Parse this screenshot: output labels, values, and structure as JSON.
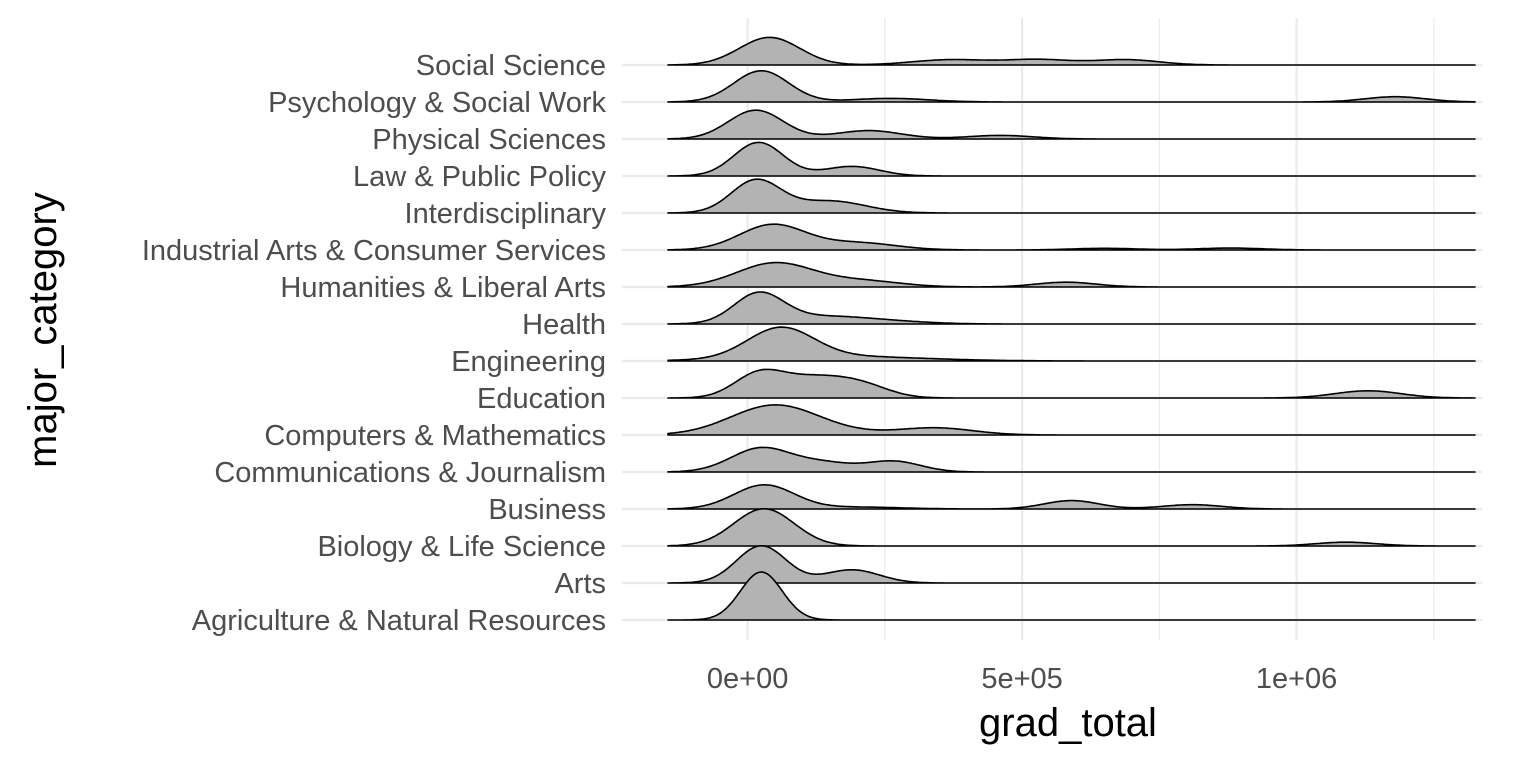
{
  "chart_data": {
    "type": "ridgeline",
    "title": "",
    "xlabel": "grad_total",
    "ylabel": "major_category",
    "x_ticks": [
      "0e+00",
      "5e+05",
      "1e+06"
    ],
    "x_tick_values": [
      0,
      500000,
      1000000
    ],
    "xlim": [
      -145000,
      1325000
    ],
    "grid": true,
    "fill_color": "#b3b3b3",
    "line_color": "#000000",
    "grid_color": "#ebebeb",
    "categories": [
      "Agriculture & Natural Resources",
      "Arts",
      "Biology & Life Science",
      "Business",
      "Communications & Journalism",
      "Computers & Mathematics",
      "Education",
      "Engineering",
      "Health",
      "Humanities & Liberal Arts",
      "Industrial Arts & Consumer Services",
      "Interdisciplinary",
      "Law & Public Policy",
      "Physical Sciences",
      "Psychology & Social Work",
      "Social Science"
    ],
    "series": [
      {
        "name": "Agriculture & Natural Resources",
        "x_range": [
          -145000,
          1325000
        ],
        "peaks": [
          {
            "x": 25000,
            "h": 2.0,
            "w": 38000
          }
        ]
      },
      {
        "name": "Arts",
        "x_range": [
          -145000,
          1325000
        ],
        "peaks": [
          {
            "x": 25000,
            "h": 1.55,
            "w": 45000
          },
          {
            "x": 190000,
            "h": 0.55,
            "w": 50000
          }
        ]
      },
      {
        "name": "Biology & Life Science",
        "x_range": [
          -145000,
          1325000
        ],
        "peaks": [
          {
            "x": 30000,
            "h": 1.55,
            "w": 55000
          },
          {
            "x": 1090000,
            "h": 0.16,
            "w": 55000
          }
        ]
      },
      {
        "name": "Business",
        "x_range": [
          -145000,
          1325000
        ],
        "peaks": [
          {
            "x": 30000,
            "h": 1.0,
            "w": 55000
          },
          {
            "x": 200000,
            "h": 0.08,
            "w": 80000
          },
          {
            "x": 590000,
            "h": 0.35,
            "w": 50000
          },
          {
            "x": 810000,
            "h": 0.18,
            "w": 55000
          }
        ]
      },
      {
        "name": "Communications & Journalism",
        "x_range": [
          -145000,
          1325000
        ],
        "peaks": [
          {
            "x": 25000,
            "h": 1.0,
            "w": 55000
          },
          {
            "x": 140000,
            "h": 0.35,
            "w": 50000
          },
          {
            "x": 265000,
            "h": 0.45,
            "w": 50000
          }
        ]
      },
      {
        "name": "Computers & Mathematics",
        "x_range": [
          -145000,
          1325000
        ],
        "peaks": [
          {
            "x": 50000,
            "h": 1.25,
            "w": 80000
          },
          {
            "x": 340000,
            "h": 0.3,
            "w": 70000
          },
          {
            "x": 180000,
            "h": 0.05,
            "w": 60000
          }
        ]
      },
      {
        "name": "Education",
        "x_range": [
          -145000,
          1325000
        ],
        "peaks": [
          {
            "x": 20000,
            "h": 0.95,
            "w": 45000
          },
          {
            "x": 120000,
            "h": 0.8,
            "w": 60000
          },
          {
            "x": 210000,
            "h": 0.45,
            "w": 50000
          },
          {
            "x": 1130000,
            "h": 0.3,
            "w": 60000
          }
        ]
      },
      {
        "name": "Engineering",
        "x_range": [
          -145000,
          1325000
        ],
        "peaks": [
          {
            "x": 60000,
            "h": 1.25,
            "w": 60000
          },
          {
            "x": 160000,
            "h": 0.2,
            "w": 150000
          }
        ]
      },
      {
        "name": "Health",
        "x_range": [
          -145000,
          1325000
        ],
        "peaks": [
          {
            "x": 20000,
            "h": 1.2,
            "w": 45000
          },
          {
            "x": 140000,
            "h": 0.32,
            "w": 90000
          },
          {
            "x": 280000,
            "h": 0.05,
            "w": 70000
          }
        ]
      },
      {
        "name": "Humanities & Liberal Arts",
        "x_range": [
          -145000,
          1325000
        ],
        "peaks": [
          {
            "x": 50000,
            "h": 1.0,
            "w": 70000
          },
          {
            "x": 210000,
            "h": 0.25,
            "w": 70000
          },
          {
            "x": 580000,
            "h": 0.2,
            "w": 55000
          }
        ]
      },
      {
        "name": "Industrial Arts & Consumer Services",
        "x_range": [
          -145000,
          1325000
        ],
        "peaks": [
          {
            "x": 45000,
            "h": 1.05,
            "w": 60000
          },
          {
            "x": 200000,
            "h": 0.3,
            "w": 70000
          },
          {
            "x": 650000,
            "h": 0.07,
            "w": 60000
          },
          {
            "x": 880000,
            "h": 0.08,
            "w": 60000
          }
        ]
      },
      {
        "name": "Interdisciplinary",
        "x_range": [
          -145000,
          1325000
        ],
        "peaks": [
          {
            "x": 15000,
            "h": 1.35,
            "w": 45000
          },
          {
            "x": 150000,
            "h": 0.5,
            "w": 65000
          }
        ]
      },
      {
        "name": "Law & Public Policy",
        "x_range": [
          -145000,
          1325000
        ],
        "peaks": [
          {
            "x": 20000,
            "h": 1.4,
            "w": 45000
          },
          {
            "x": 190000,
            "h": 0.4,
            "w": 50000
          }
        ]
      },
      {
        "name": "Physical Sciences",
        "x_range": [
          -145000,
          1325000
        ],
        "peaks": [
          {
            "x": 15000,
            "h": 1.2,
            "w": 50000
          },
          {
            "x": 220000,
            "h": 0.35,
            "w": 60000
          },
          {
            "x": 460000,
            "h": 0.15,
            "w": 60000
          }
        ]
      },
      {
        "name": "Psychology & Social Work",
        "x_range": [
          -145000,
          1325000
        ],
        "peaks": [
          {
            "x": 25000,
            "h": 1.3,
            "w": 50000
          },
          {
            "x": 260000,
            "h": 0.15,
            "w": 70000
          },
          {
            "x": 1180000,
            "h": 0.22,
            "w": 55000
          }
        ]
      },
      {
        "name": "Social Science",
        "x_range": [
          -145000,
          1325000
        ],
        "peaks": [
          {
            "x": 40000,
            "h": 1.15,
            "w": 55000
          },
          {
            "x": 370000,
            "h": 0.22,
            "w": 70000
          },
          {
            "x": 530000,
            "h": 0.22,
            "w": 60000
          },
          {
            "x": 690000,
            "h": 0.22,
            "w": 60000
          }
        ]
      }
    ]
  }
}
